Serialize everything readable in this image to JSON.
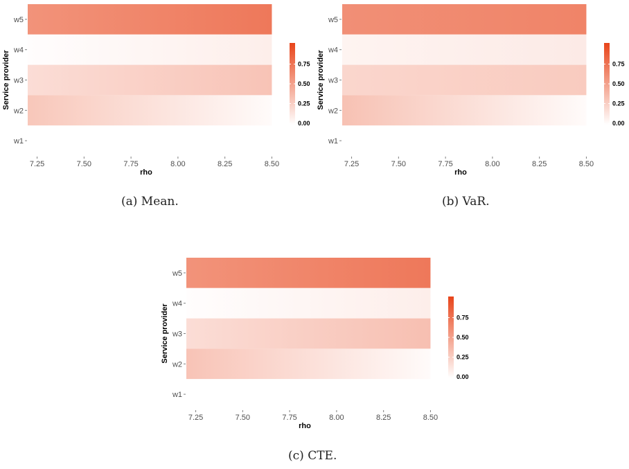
{
  "colors": {
    "low": "#ffffff",
    "high": "#e8441a",
    "tick": "#7f7f7f"
  },
  "legend_ticks": [
    "0.00",
    "0.25",
    "0.50",
    "0.75"
  ],
  "chart_data": [
    {
      "type": "heatmap",
      "caption": "(a) Mean.",
      "xlabel": "rho",
      "ylabel": "Service provider",
      "x_ticks": [
        "7.25",
        "7.50",
        "7.75",
        "8.00",
        "8.25",
        "8.50"
      ],
      "xlim": [
        7.2,
        8.55
      ],
      "rows": [
        "w1",
        "w2",
        "w3",
        "w4",
        "w5"
      ],
      "value_range": [
        0,
        1
      ],
      "series": [
        {
          "name": "w5",
          "x": [
            7.2,
            8.5
          ],
          "values": [
            0.58,
            0.72
          ]
        },
        {
          "name": "w4",
          "x": [
            7.2,
            8.5
          ],
          "values": [
            0.01,
            0.09
          ]
        },
        {
          "name": "w3",
          "x": [
            7.2,
            8.5
          ],
          "values": [
            0.18,
            0.32
          ]
        },
        {
          "name": "w2",
          "x": [
            7.2,
            8.5
          ],
          "values": [
            0.3,
            0.02
          ]
        },
        {
          "name": "w1",
          "x": [
            7.2,
            8.5
          ],
          "values": [
            0.0,
            0.0
          ]
        }
      ]
    },
    {
      "type": "heatmap",
      "caption": "(b) VaR.",
      "xlabel": "rho",
      "ylabel": "Service provider",
      "x_ticks": [
        "7.25",
        "7.50",
        "7.75",
        "8.00",
        "8.25",
        "8.50"
      ],
      "xlim": [
        7.2,
        8.55
      ],
      "rows": [
        "w1",
        "w2",
        "w3",
        "w4",
        "w5"
      ],
      "value_range": [
        0,
        1
      ],
      "series": [
        {
          "name": "w5",
          "x": [
            7.2,
            8.5
          ],
          "values": [
            0.6,
            0.66
          ]
        },
        {
          "name": "w4",
          "x": [
            7.2,
            8.5
          ],
          "values": [
            0.06,
            0.11
          ]
        },
        {
          "name": "w3",
          "x": [
            7.2,
            8.5
          ],
          "values": [
            0.22,
            0.28
          ]
        },
        {
          "name": "w2",
          "x": [
            7.2,
            8.5
          ],
          "values": [
            0.33,
            0.02
          ]
        },
        {
          "name": "w1",
          "x": [
            7.2,
            8.5
          ],
          "values": [
            0.0,
            0.0
          ]
        }
      ]
    },
    {
      "type": "heatmap",
      "caption": "(c) CTE.",
      "xlabel": "rho",
      "ylabel": "Service provider",
      "x_ticks": [
        "7.25",
        "7.50",
        "7.75",
        "8.00",
        "8.25",
        "8.50"
      ],
      "xlim": [
        7.2,
        8.55
      ],
      "rows": [
        "w1",
        "w2",
        "w3",
        "w4",
        "w5"
      ],
      "value_range": [
        0,
        1
      ],
      "series": [
        {
          "name": "w5",
          "x": [
            7.2,
            8.5
          ],
          "values": [
            0.58,
            0.72
          ]
        },
        {
          "name": "w4",
          "x": [
            7.2,
            8.5
          ],
          "values": [
            0.01,
            0.09
          ]
        },
        {
          "name": "w3",
          "x": [
            7.2,
            8.5
          ],
          "values": [
            0.18,
            0.34
          ]
        },
        {
          "name": "w2",
          "x": [
            7.2,
            8.5
          ],
          "values": [
            0.32,
            0.02
          ]
        },
        {
          "name": "w1",
          "x": [
            7.2,
            8.5
          ],
          "values": [
            0.0,
            0.0
          ]
        }
      ]
    }
  ]
}
